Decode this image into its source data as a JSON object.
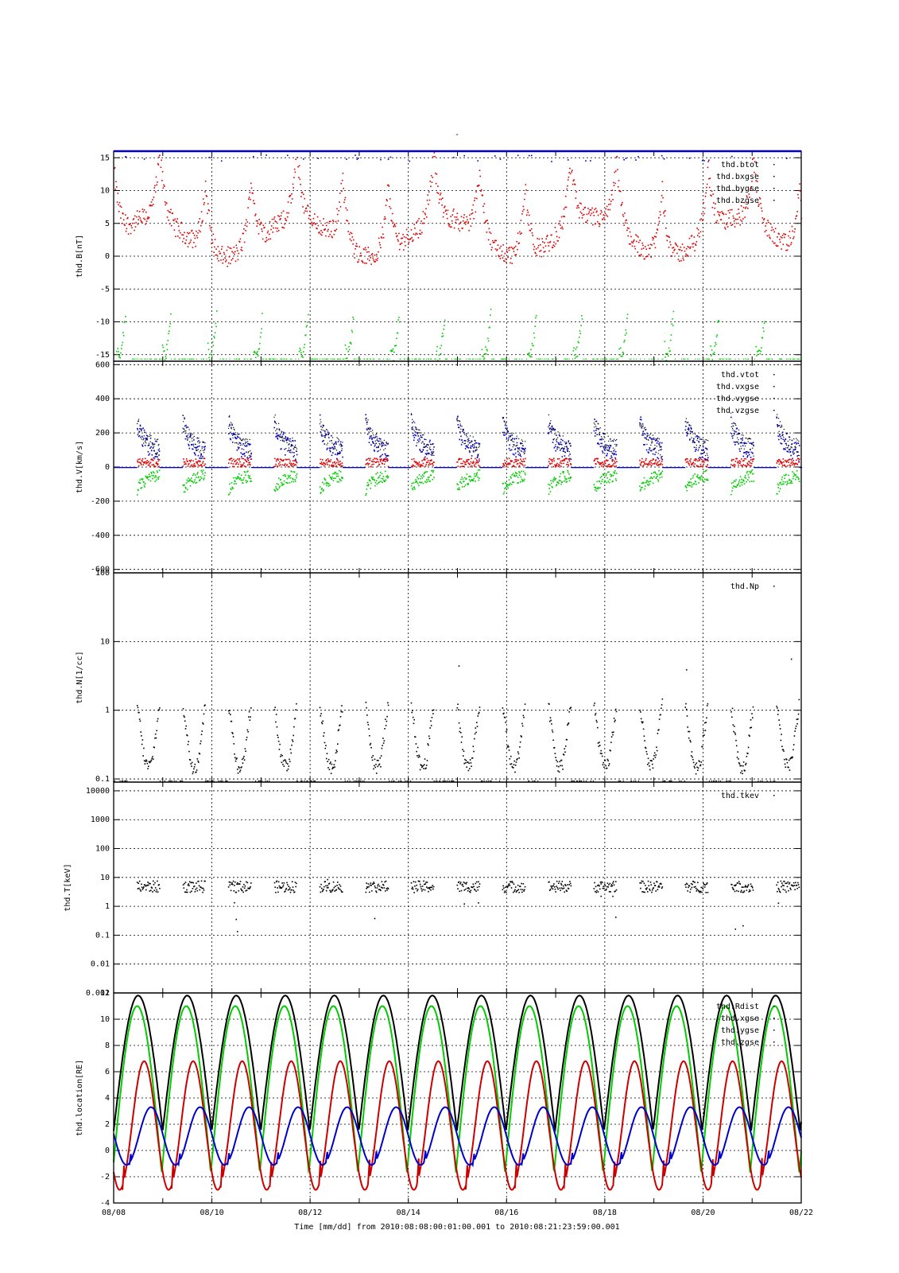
{
  "page": {
    "top_mark": "-",
    "x_axis_label": "Time [mm/dd]  from 2010:08:08:00:01:00.001  to  2010:08:21:23:59:00.001"
  },
  "chart_data": {
    "type": "scatter",
    "x_unit": "day",
    "x_range": [
      "2010-08-08",
      "2010-08-22"
    ],
    "x_ticks": [
      "08/08",
      "08/10",
      "08/12",
      "08/14",
      "08/16",
      "08/18",
      "08/20",
      "08/22"
    ],
    "grid": true,
    "legend_position": "top-right",
    "panels": [
      {
        "ylabel": "thd.B[nT]",
        "scale": "linear",
        "ylim": [
          -16,
          16
        ],
        "yticks": [
          15,
          10,
          5,
          0,
          -5,
          -10,
          -15
        ],
        "ytick_labels": [
          "15",
          "10",
          "5",
          "0",
          "-5",
          "-10",
          "-15"
        ],
        "legend": [
          "thd.btot",
          "thd.bxgse",
          "thd.bygse",
          "thd.bzgse"
        ],
        "series": [
          {
            "name": "thd.btot",
            "color": "#000000"
          },
          {
            "name": "thd.bxgse",
            "color": "#dd0000"
          },
          {
            "name": "thd.bygse",
            "color": "#00cc00"
          },
          {
            "name": "thd.bzgse",
            "color": "#0000cc"
          }
        ]
      },
      {
        "ylabel": "thd.V[km/s]",
        "scale": "linear",
        "ylim": [
          -620,
          620
        ],
        "yticks": [
          600,
          400,
          200,
          0,
          -200,
          -400,
          -600
        ],
        "ytick_labels": [
          "600",
          "400",
          "200",
          "0",
          "-200",
          "-400",
          "-600"
        ],
        "legend": [
          "thd.vtot",
          "thd.vxgse",
          "thd.vygse",
          "thd.vzgse"
        ],
        "series": [
          {
            "name": "thd.vtot",
            "color": "#000000"
          },
          {
            "name": "thd.vxgse",
            "color": "#0000cc"
          },
          {
            "name": "thd.vygse",
            "color": "#00cc00"
          },
          {
            "name": "thd.vzgse",
            "color": "#dd0000"
          }
        ]
      },
      {
        "ylabel": "thd.N[1/cc]",
        "scale": "log",
        "ylim": [
          0.09,
          100
        ],
        "yticks": [
          100,
          10,
          1,
          0.1
        ],
        "ytick_labels": [
          "100",
          "10",
          "1",
          "0.1"
        ],
        "legend": [
          "thd.Np"
        ],
        "series": [
          {
            "name": "thd.Np",
            "color": "#000000"
          }
        ]
      },
      {
        "ylabel": "thd.T[keV]",
        "scale": "log",
        "ylim": [
          0.001,
          20000
        ],
        "yticks": [
          10000,
          1000,
          100,
          10,
          1,
          0.1,
          0.01,
          0.001
        ],
        "ytick_labels": [
          "10000",
          "1000",
          "100",
          "10",
          "1",
          "0.1",
          "0.01",
          "0.001"
        ],
        "legend": [
          "thd.tkev"
        ],
        "series": [
          {
            "name": "thd.tkev",
            "color": "#000000"
          }
        ]
      },
      {
        "ylabel": "thd.location[RE]",
        "scale": "linear",
        "ylim": [
          -4,
          12
        ],
        "yticks": [
          12,
          10,
          8,
          6,
          4,
          2,
          0,
          -2,
          -4
        ],
        "ytick_labels": [
          "12",
          "10",
          "8",
          "6",
          "4",
          "2",
          "0",
          "-2",
          "-4"
        ],
        "legend": [
          "thd.Rdist",
          "thd.xgse",
          "thd.ygse",
          "thd.zgse"
        ],
        "series": [
          {
            "name": "thd.Rdist",
            "color": "#000000",
            "orbit_period_days": 1.0,
            "min": 1.5,
            "max": 11.8
          },
          {
            "name": "thd.xgse",
            "color": "#00cc00",
            "orbit_period_days": 1.0,
            "min": -1.7,
            "max": 11.0
          },
          {
            "name": "thd.ygse",
            "color": "#cc0000",
            "orbit_period_days": 1.0,
            "min": -3.0,
            "max": 6.8
          },
          {
            "name": "thd.zgse",
            "color": "#0000cc",
            "orbit_period_days": 1.0,
            "min": -1.1,
            "max": 3.3
          }
        ]
      }
    ]
  }
}
